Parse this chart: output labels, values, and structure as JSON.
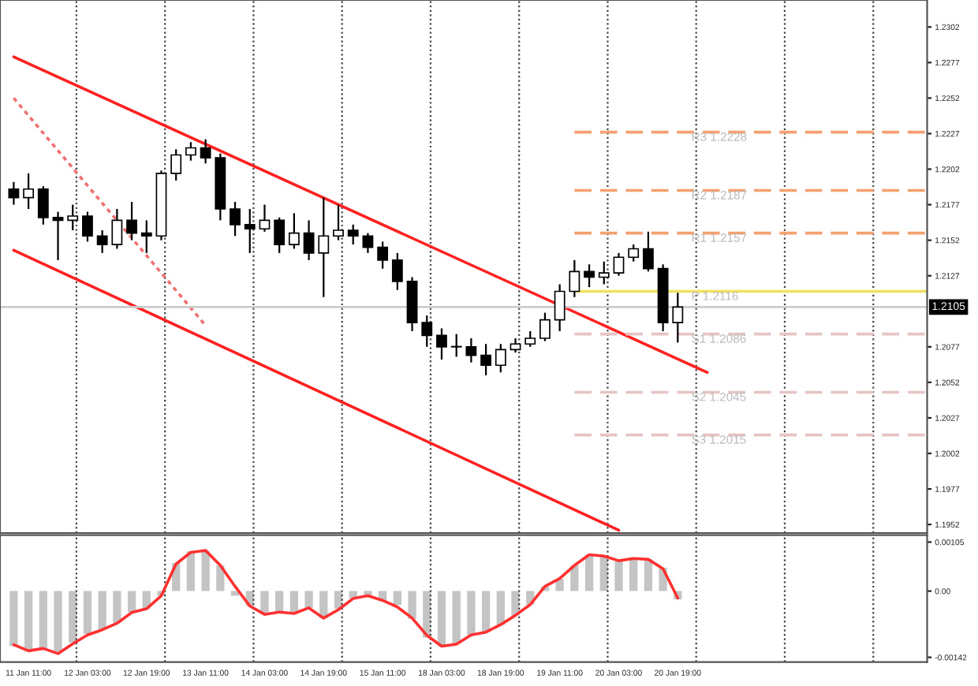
{
  "chart_data": [
    {
      "type": "candlestick",
      "categories": [
        null,
        null,
        null,
        null,
        null,
        null,
        null,
        null,
        null,
        null,
        null,
        null,
        null,
        null,
        null,
        null,
        null,
        null,
        null,
        null,
        null,
        null,
        null,
        null,
        null,
        null,
        null,
        null,
        null,
        null,
        null,
        null,
        null,
        null,
        null,
        null,
        null,
        null,
        null,
        null,
        null,
        null,
        null,
        null,
        null,
        null,
        null,
        null,
        null,
        null,
        null,
        null,
        null,
        null,
        null,
        null,
        null,
        null,
        null,
        null,
        null,
        null,
        null
      ],
      "ohlc": [
        [
          1.2188,
          1.2193,
          1.2177,
          1.2182
        ],
        [
          1.2182,
          1.2199,
          1.2174,
          1.2188
        ],
        [
          1.2188,
          1.219,
          1.2163,
          1.2168
        ],
        [
          1.2168,
          1.2172,
          1.2138,
          1.2166
        ],
        [
          1.2166,
          1.2177,
          1.2159,
          1.2169
        ],
        [
          1.2169,
          1.2172,
          1.2151,
          1.2155
        ],
        [
          1.2155,
          1.2159,
          1.2143,
          1.2149
        ],
        [
          1.2149,
          1.2174,
          1.2146,
          1.2166
        ],
        [
          1.2166,
          1.2179,
          1.2152,
          1.2157
        ],
        [
          1.2157,
          1.2166,
          1.2143,
          1.2155
        ],
        [
          1.2155,
          1.2201,
          1.2152,
          1.2199
        ],
        [
          1.2199,
          1.2216,
          1.2194,
          1.2212
        ],
        [
          1.2212,
          1.2221,
          1.2208,
          1.2217
        ],
        [
          1.2217,
          1.2223,
          1.2206,
          1.221
        ],
        [
          1.221,
          1.2213,
          1.2166,
          1.2174
        ],
        [
          1.2174,
          1.2179,
          1.2155,
          1.2163
        ],
        [
          1.2163,
          1.2174,
          1.2143,
          1.216
        ],
        [
          1.216,
          1.2177,
          1.2158,
          1.2166
        ],
        [
          1.2166,
          1.2168,
          1.2143,
          1.2149
        ],
        [
          1.2149,
          1.2171,
          1.2146,
          1.2157
        ],
        [
          1.2157,
          1.2166,
          1.2138,
          1.2143
        ],
        [
          1.2143,
          1.2182,
          1.2112,
          1.2155
        ],
        [
          1.2155,
          1.2177,
          1.2152,
          1.2159
        ],
        [
          1.2159,
          1.2163,
          1.2149,
          1.2155
        ],
        [
          1.2155,
          1.2157,
          1.2143,
          1.2147
        ],
        [
          1.2147,
          1.2151,
          1.2132,
          1.2138
        ],
        [
          1.2138,
          1.2143,
          1.2117,
          1.2123
        ],
        [
          1.2123,
          1.2126,
          1.2088,
          1.2094
        ],
        [
          1.2094,
          1.2099,
          1.2077,
          1.2085
        ],
        [
          1.2085,
          1.209,
          1.2068,
          1.2077
        ],
        [
          1.2077,
          1.2086,
          1.207,
          1.2077
        ],
        [
          1.2077,
          1.2083,
          1.2066,
          1.2071
        ],
        [
          1.2071,
          1.2079,
          1.2057,
          1.2064
        ],
        [
          1.2064,
          1.2079,
          1.2059,
          1.2075
        ],
        [
          1.2075,
          1.2083,
          1.2073,
          1.2079
        ],
        [
          1.2079,
          1.2088,
          1.2077,
          1.2083
        ],
        [
          1.2083,
          1.2101,
          1.2081,
          1.2096
        ],
        [
          1.2096,
          1.2121,
          1.2088,
          1.2116
        ],
        [
          1.2116,
          1.2138,
          1.2112,
          1.213
        ],
        [
          1.213,
          1.2135,
          1.2119,
          1.2126
        ],
        [
          1.2126,
          1.2137,
          1.2121,
          1.2129
        ],
        [
          1.2129,
          1.2143,
          1.2127,
          1.214
        ],
        [
          1.214,
          1.2149,
          1.2137,
          1.2146
        ],
        [
          1.2146,
          1.2158,
          1.213,
          1.2132
        ],
        [
          1.2132,
          1.2135,
          1.2088,
          1.2094
        ],
        [
          1.2094,
          1.2115,
          1.208,
          1.2105
        ],
        null,
        null,
        null,
        null,
        null,
        null,
        null,
        null,
        null,
        null,
        null,
        null,
        null,
        null,
        null,
        null,
        null
      ],
      "series": [
        {
          "type": "line",
          "color": "#ff2020",
          "line_style": "solid",
          "values": [
            1.2281,
            null,
            null,
            null,
            null,
            null,
            null,
            null,
            null,
            null,
            null,
            null,
            null,
            null,
            null,
            null,
            null,
            null,
            null,
            null,
            null,
            null,
            null,
            null,
            null,
            null,
            null,
            null,
            null,
            null,
            null,
            null,
            null,
            null,
            null,
            null,
            null,
            null,
            null,
            null,
            null,
            null,
            null,
            null,
            null,
            null,
            null,
            1.2059,
            null,
            null,
            null,
            null,
            null,
            null,
            null,
            null,
            null,
            null,
            null,
            null,
            null,
            null,
            null
          ]
        },
        {
          "type": "line",
          "color": "#ff2020",
          "line_style": "solid",
          "values": [
            1.2145,
            null,
            null,
            null,
            null,
            null,
            null,
            null,
            null,
            null,
            null,
            null,
            null,
            null,
            null,
            null,
            null,
            null,
            null,
            null,
            null,
            null,
            null,
            null,
            null,
            null,
            null,
            null,
            null,
            null,
            null,
            null,
            null,
            null,
            null,
            null,
            null,
            null,
            null,
            null,
            null,
            1.1948,
            null,
            null,
            null,
            null,
            null,
            null,
            null,
            null,
            null,
            null,
            null,
            null,
            null,
            null,
            null,
            null,
            null,
            null,
            null,
            null,
            null
          ]
        },
        {
          "type": "line",
          "color": "#f07070",
          "line_style": "dotted",
          "values": [
            1.2252,
            null,
            null,
            null,
            null,
            null,
            null,
            null,
            null,
            null,
            null,
            null,
            null,
            1.2092,
            null,
            null,
            null,
            null,
            null,
            null,
            null,
            null,
            null,
            null,
            null,
            null,
            null,
            null,
            null,
            null,
            null,
            null,
            null,
            null,
            null,
            null,
            null,
            null,
            null,
            null,
            null,
            null,
            null,
            null,
            null,
            null,
            null,
            null,
            null,
            null,
            null,
            null,
            null,
            null,
            null,
            null,
            null,
            null,
            null,
            null,
            null,
            null,
            null
          ]
        },
        {
          "type": "line",
          "name": "R3 1.2228",
          "color": "#f5a070",
          "line_style": "dashed",
          "values": [
            null,
            null,
            null,
            null,
            null,
            null,
            null,
            null,
            null,
            null,
            null,
            null,
            null,
            null,
            null,
            null,
            null,
            null,
            null,
            null,
            null,
            null,
            null,
            null,
            null,
            null,
            null,
            null,
            null,
            null,
            null,
            null,
            null,
            null,
            null,
            null,
            null,
            null,
            1.2228,
            null,
            null,
            null,
            null,
            null,
            null,
            null,
            null,
            null,
            null,
            null,
            null,
            null,
            null,
            null,
            null,
            null,
            null,
            null,
            null,
            null,
            null,
            null,
            1.2228
          ]
        },
        {
          "type": "line",
          "name": "R2 1.2187",
          "color": "#f5a070",
          "line_style": "dashed",
          "values": [
            null,
            null,
            null,
            null,
            null,
            null,
            null,
            null,
            null,
            null,
            null,
            null,
            null,
            null,
            null,
            null,
            null,
            null,
            null,
            null,
            null,
            null,
            null,
            null,
            null,
            null,
            null,
            null,
            null,
            null,
            null,
            null,
            null,
            null,
            null,
            null,
            null,
            null,
            1.2187,
            null,
            null,
            null,
            null,
            null,
            null,
            null,
            null,
            null,
            null,
            null,
            null,
            null,
            null,
            null,
            null,
            null,
            null,
            null,
            null,
            null,
            null,
            null,
            1.2187
          ]
        },
        {
          "type": "line",
          "name": "R1 1.2157",
          "color": "#f5a070",
          "line_style": "dashed",
          "values": [
            null,
            null,
            null,
            null,
            null,
            null,
            null,
            null,
            null,
            null,
            null,
            null,
            null,
            null,
            null,
            null,
            null,
            null,
            null,
            null,
            null,
            null,
            null,
            null,
            null,
            null,
            null,
            null,
            null,
            null,
            null,
            null,
            null,
            null,
            null,
            null,
            null,
            null,
            1.2157,
            null,
            null,
            null,
            null,
            null,
            null,
            null,
            null,
            null,
            null,
            null,
            null,
            null,
            null,
            null,
            null,
            null,
            null,
            null,
            null,
            null,
            null,
            null,
            1.2157
          ]
        },
        {
          "type": "line",
          "name": "P 1.2116",
          "color": "#f0e060",
          "line_style": "solid",
          "values": [
            null,
            null,
            null,
            null,
            null,
            null,
            null,
            null,
            null,
            null,
            null,
            null,
            null,
            null,
            null,
            null,
            null,
            null,
            null,
            null,
            null,
            null,
            null,
            null,
            null,
            null,
            null,
            null,
            null,
            null,
            null,
            null,
            null,
            null,
            null,
            null,
            null,
            null,
            1.2116,
            null,
            null,
            null,
            null,
            null,
            null,
            null,
            null,
            null,
            null,
            null,
            null,
            null,
            null,
            null,
            null,
            null,
            null,
            null,
            null,
            null,
            null,
            null,
            1.2116
          ]
        },
        {
          "type": "line",
          "name": "S1 1.2086",
          "color": "#e6c4c4",
          "line_style": "dashed",
          "values": [
            null,
            null,
            null,
            null,
            null,
            null,
            null,
            null,
            null,
            null,
            null,
            null,
            null,
            null,
            null,
            null,
            null,
            null,
            null,
            null,
            null,
            null,
            null,
            null,
            null,
            null,
            null,
            null,
            null,
            null,
            null,
            null,
            null,
            null,
            null,
            null,
            null,
            null,
            1.2086,
            null,
            null,
            null,
            null,
            null,
            null,
            null,
            null,
            null,
            null,
            null,
            null,
            null,
            null,
            null,
            null,
            null,
            null,
            null,
            null,
            null,
            null,
            null,
            1.2086
          ]
        },
        {
          "type": "line",
          "name": "S2 1.2045",
          "color": "#e6c4c4",
          "line_style": "dashed",
          "values": [
            null,
            null,
            null,
            null,
            null,
            null,
            null,
            null,
            null,
            null,
            null,
            null,
            null,
            null,
            null,
            null,
            null,
            null,
            null,
            null,
            null,
            null,
            null,
            null,
            null,
            null,
            null,
            null,
            null,
            null,
            null,
            null,
            null,
            null,
            null,
            null,
            null,
            null,
            1.2045,
            null,
            null,
            null,
            null,
            null,
            null,
            null,
            null,
            null,
            null,
            null,
            null,
            null,
            null,
            null,
            null,
            null,
            null,
            null,
            null,
            null,
            null,
            null,
            1.2045
          ]
        },
        {
          "type": "line",
          "name": "S3 1.2015",
          "color": "#e6c4c4",
          "line_style": "dashed",
          "values": [
            null,
            null,
            null,
            null,
            null,
            null,
            null,
            null,
            null,
            null,
            null,
            null,
            null,
            null,
            null,
            null,
            null,
            null,
            null,
            null,
            null,
            null,
            null,
            null,
            null,
            null,
            null,
            null,
            null,
            null,
            null,
            null,
            null,
            null,
            null,
            null,
            null,
            null,
            1.2015,
            null,
            null,
            null,
            null,
            null,
            null,
            null,
            null,
            null,
            null,
            null,
            null,
            null,
            null,
            null,
            null,
            null,
            null,
            null,
            null,
            null,
            null,
            null,
            1.2015
          ]
        }
      ],
      "ref_lines": [
        {
          "axis": "y",
          "value": 1.2105,
          "label": "1.2105",
          "color": "#cccccc"
        }
      ],
      "ylim": [
        1.1946,
        1.2321
      ],
      "yticks": [
        1.2302,
        1.2277,
        1.2252,
        1.2227,
        1.2202,
        1.2177,
        1.2152,
        1.2127,
        1.2077,
        1.2052,
        1.2027,
        1.2002,
        1.1977,
        1.1952
      ],
      "tick_labels": "y",
      "grid": "x"
    },
    {
      "type": "bar",
      "categories": [
        null,
        "11 Jan 11:00",
        null,
        null,
        null,
        "12 Jan 03:00",
        null,
        null,
        null,
        "12 Jan 19:00",
        null,
        null,
        null,
        "13 Jan 11:00",
        null,
        null,
        null,
        "14 Jan 03:00",
        null,
        null,
        null,
        "14 Jan 19:00",
        null,
        null,
        null,
        "15 Jan 11:00",
        null,
        null,
        null,
        "18 Jan 03:00",
        null,
        null,
        null,
        "18 Jan 19:00",
        null,
        null,
        null,
        "19 Jan 11:00",
        null,
        null,
        null,
        "20 Jan 03:00",
        null,
        null,
        null,
        "20 Jan 19:00",
        null,
        null,
        null,
        null,
        null,
        null,
        null,
        null,
        null,
        null,
        null,
        null,
        null,
        null,
        null,
        null,
        null
      ],
      "series": [
        {
          "type": "bar",
          "color": "#c4c4c4",
          "values": [
            -0.00118,
            -0.00128,
            -0.00123,
            -0.0013,
            -0.0011,
            -0.00092,
            -0.00082,
            -0.00068,
            -0.00045,
            -0.00038,
            -0.0001,
            0.0006,
            0.00085,
            0.00086,
            0.00055,
            -0.0001,
            -0.00032,
            -0.0005,
            -0.00045,
            -0.00048,
            -0.00036,
            -0.00058,
            -0.00038,
            -0.00016,
            -0.0001,
            -0.0002,
            -0.0003,
            -0.0006,
            -0.001,
            -0.00118,
            -0.00112,
            -0.00095,
            -0.00088,
            -0.00072,
            -0.00052,
            -0.00029,
            0.0001,
            0.00026,
            0.00055,
            0.00078,
            0.00075,
            0.00064,
            0.0007,
            0.00068,
            0.0005,
            -0.00018,
            null,
            null,
            null,
            null,
            null,
            null,
            null,
            null,
            null,
            null,
            null,
            null,
            null,
            null,
            null,
            null,
            null
          ]
        },
        {
          "type": "line",
          "color": "#ff3030",
          "line_style": "solid",
          "values": [
            -0.00115,
            -0.00128,
            -0.00123,
            -0.00134,
            -0.00113,
            -0.00094,
            -0.00083,
            -0.00069,
            -0.00046,
            -0.00038,
            -0.0001,
            0.00058,
            0.00083,
            0.00087,
            0.00055,
            0.0001,
            -0.00032,
            -0.0005,
            -0.00045,
            -0.00048,
            -0.00036,
            -0.00058,
            -0.0004,
            -0.00016,
            -0.0001,
            -0.0002,
            -0.00034,
            -0.00058,
            -0.00095,
            -0.00118,
            -0.00114,
            -0.00094,
            -0.00088,
            -0.00072,
            -0.00052,
            -0.00029,
            0.0001,
            0.00027,
            0.00055,
            0.00078,
            0.00075,
            0.00065,
            0.0007,
            0.00068,
            0.00048,
            -0.00015,
            null,
            null,
            null,
            null,
            null,
            null,
            null,
            null,
            null,
            null,
            null,
            null,
            null,
            null,
            null,
            null,
            null
          ]
        }
      ],
      "ylim": [
        -0.00152,
        0.0012
      ],
      "yticks": [
        {
          "value": 0.00105,
          "label": "0.00105"
        },
        {
          "value": 0,
          "label": "0.00"
        },
        {
          "value": -0.00142,
          "label": "-0.00142"
        }
      ],
      "grid": "x"
    }
  ]
}
